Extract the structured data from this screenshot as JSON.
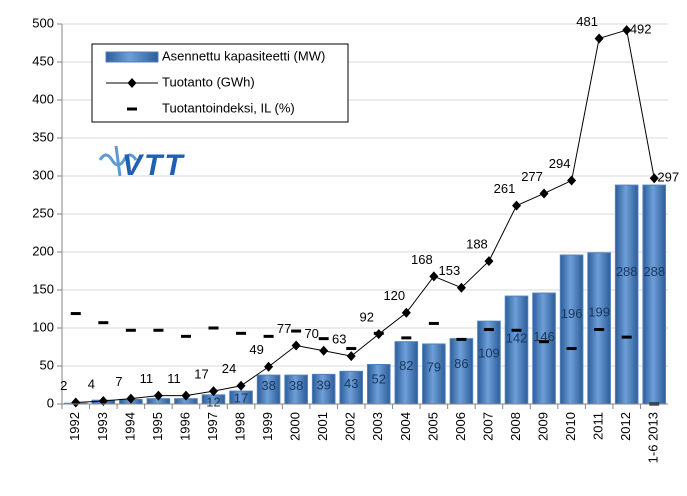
{
  "chart_data": {
    "type": "bar",
    "logo": "VTT",
    "categories": [
      "1992",
      "1993",
      "1994",
      "1995",
      "1996",
      "1997",
      "1998",
      "1999",
      "2000",
      "2001",
      "2002",
      "2003",
      "2004",
      "2005",
      "2006",
      "2007",
      "2008",
      "2009",
      "2010",
      "2011",
      "2012",
      "1-6 2013"
    ],
    "series": [
      {
        "name": "Asennettu kapasiteetti (MW)",
        "type": "bar",
        "color": "#4f81bd",
        "values": [
          1,
          5,
          6,
          7,
          7,
          12,
          17,
          38,
          38,
          39,
          43,
          52,
          82,
          79,
          86,
          109,
          142,
          146,
          196,
          199,
          288,
          288
        ],
        "value_labels": [
          null,
          null,
          null,
          null,
          null,
          "12",
          "17",
          "38",
          "38",
          "39",
          "43",
          "52",
          "82",
          "79",
          "86",
          "109",
          "142",
          "146",
          "196",
          "199",
          "288",
          "288"
        ]
      },
      {
        "name": "Tuotanto (GWh)",
        "type": "line",
        "color": "#000000",
        "values": [
          2,
          4,
          7,
          11,
          11,
          17,
          24,
          49,
          77,
          70,
          63,
          92,
          120,
          168,
          153,
          188,
          261,
          277,
          294,
          481,
          492,
          297
        ]
      },
      {
        "name": "Tuotantoindeksi, IL (%)",
        "type": "dash",
        "color": "#000000",
        "values": [
          119,
          107,
          97,
          97,
          89,
          100,
          93,
          89,
          96,
          86,
          73,
          93,
          87,
          106,
          85,
          98,
          97,
          82,
          73,
          98,
          88,
          0
        ]
      }
    ],
    "ylim": [
      0,
      500
    ],
    "yticks": [
      0,
      50,
      100,
      150,
      200,
      250,
      300,
      350,
      400,
      450,
      500
    ],
    "grid": true
  }
}
